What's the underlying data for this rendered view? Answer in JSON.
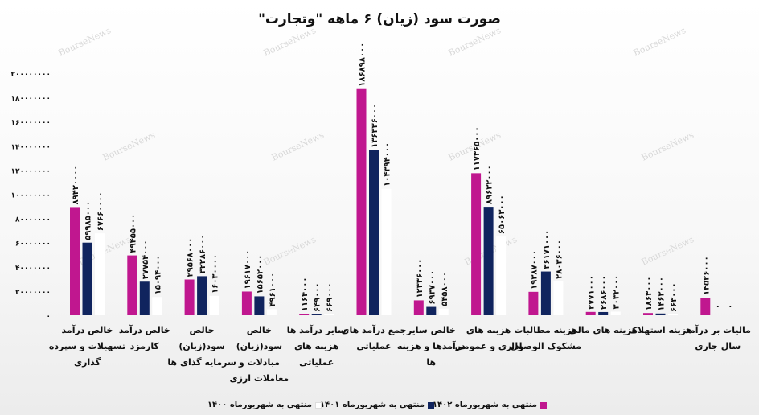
{
  "chart_data": {
    "type": "bar",
    "title": "صورت سود (زیان) ۶ ماهه \"وتجارت\"",
    "watermark": "BourseNews",
    "ylim": [
      0,
      200000000
    ],
    "yticks": [
      "۰",
      "۲۰۰۰۰۰۰۰",
      "۴۰۰۰۰۰۰۰",
      "۶۰۰۰۰۰۰۰",
      "۸۰۰۰۰۰۰۰",
      "۱۰۰۰۰۰۰۰۰",
      "۱۲۰۰۰۰۰۰۰",
      "۱۴۰۰۰۰۰۰۰",
      "۱۶۰۰۰۰۰۰۰",
      "۱۸۰۰۰۰۰۰۰",
      "۲۰۰۰۰۰۰۰۰"
    ],
    "categories": [
      [
        "خالص درآمد",
        "تسهیلات و سپرده",
        "گذاری"
      ],
      [
        "خالص درآمد",
        "کارمزد"
      ],
      [
        "خالص",
        "سود(زیان)",
        "سرمایه گذای ها"
      ],
      [
        "خالص",
        "سود(زیان)",
        "مبادلات و",
        "معاملات ارزی"
      ],
      [
        "سایر درآمد ها",
        "هزینه های",
        "عملیاتی"
      ],
      [
        "جمع درآمد های",
        "عملیاتی"
      ],
      [
        "خالص سایر",
        "درآمدها و هزینه",
        "ها"
      ],
      [
        "هزینه های",
        "اداری و عمومی"
      ],
      [
        "هزینه مطالبات",
        "مشکوک الوصول"
      ],
      [
        "هزینه های مالی"
      ],
      [
        "هزینه استهلاک"
      ],
      [
        "مالیات بر درآمد",
        "سال جاری"
      ]
    ],
    "series": [
      {
        "name": "منتهی به شهریورماه ۱۴۰۲",
        "color": "#c0178f",
        "values": [
          89420000,
          49455000,
          29568000,
          19617000,
          1164000,
          186898000,
          12336000,
          117365000,
          19387000,
          2771000,
          1863000,
          14526000
        ],
        "labels": [
          "۸۹۴۲۰۰۰۰",
          "۴۹۴۵۵۰۰۰",
          "۲۹۵۶۸۰۰۰",
          "۱۹۶۱۷۰۰۰",
          "۱۱۶۴۰۰۰",
          "۱۸۶۸۹۸۰۰۰",
          "۱۲۳۳۶۰۰۰",
          "۱۱۷۳۶۵۰۰۰",
          "۱۹۳۸۷۰۰۰",
          "۲۷۷۱۰۰۰",
          "۱۸۶۳۰۰۰",
          "۱۴۵۲۶۰۰۰"
        ]
      },
      {
        "name": "منتهی به شهریورماه ۱۴۰۱",
        "color": "#10245e",
        "values": [
          59985000,
          27754000,
          32286000,
          15652000,
          649000,
          136336000,
          6937000,
          89632000,
          36171000,
          2686000,
          1462000,
          0
        ],
        "labels": [
          "۵۹۹۸۵۰۰۰",
          "۲۷۷۵۴۰۰۰",
          "۳۲۲۸۶۰۰۰",
          "۱۵۶۵۲۰۰۰",
          "۶۴۹۰۰۰",
          "۱۳۶۳۳۶۰۰۰",
          "۶۹۳۷۰۰۰",
          "۸۹۶۳۲۰۰۰",
          "۳۶۱۷۱۰۰۰",
          "۲۶۸۶۰۰۰",
          "۱۴۶۲۰۰۰",
          "۰"
        ]
      },
      {
        "name": "منتهی به شهریورماه ۱۴۰۰",
        "color": "#ffffff",
        "values": [
          67660000,
          15094000,
          16030000,
          4961000,
          669000,
          104394000,
          5458000,
          65063000,
          28036000,
          3032000,
          663000,
          0
        ],
        "labels": [
          "۶۷۶۶۰۰۰۰",
          "۱۵۰۹۴۰۰۰",
          "۱۶۰۳۰۰۰۰",
          "۴۹۶۱۰۰۰",
          "۶۶۹۰۰۰",
          "۱۰۴۳۹۴۰۰۰",
          "۵۴۵۸۰۰۰",
          "۶۵۰۶۳۰۰۰",
          "۲۸۰۳۶۰۰۰",
          "۳۰۳۲۰۰۰",
          "۶۶۳۰۰۰",
          "۰"
        ]
      }
    ],
    "grid": false,
    "legend": "bottom"
  }
}
